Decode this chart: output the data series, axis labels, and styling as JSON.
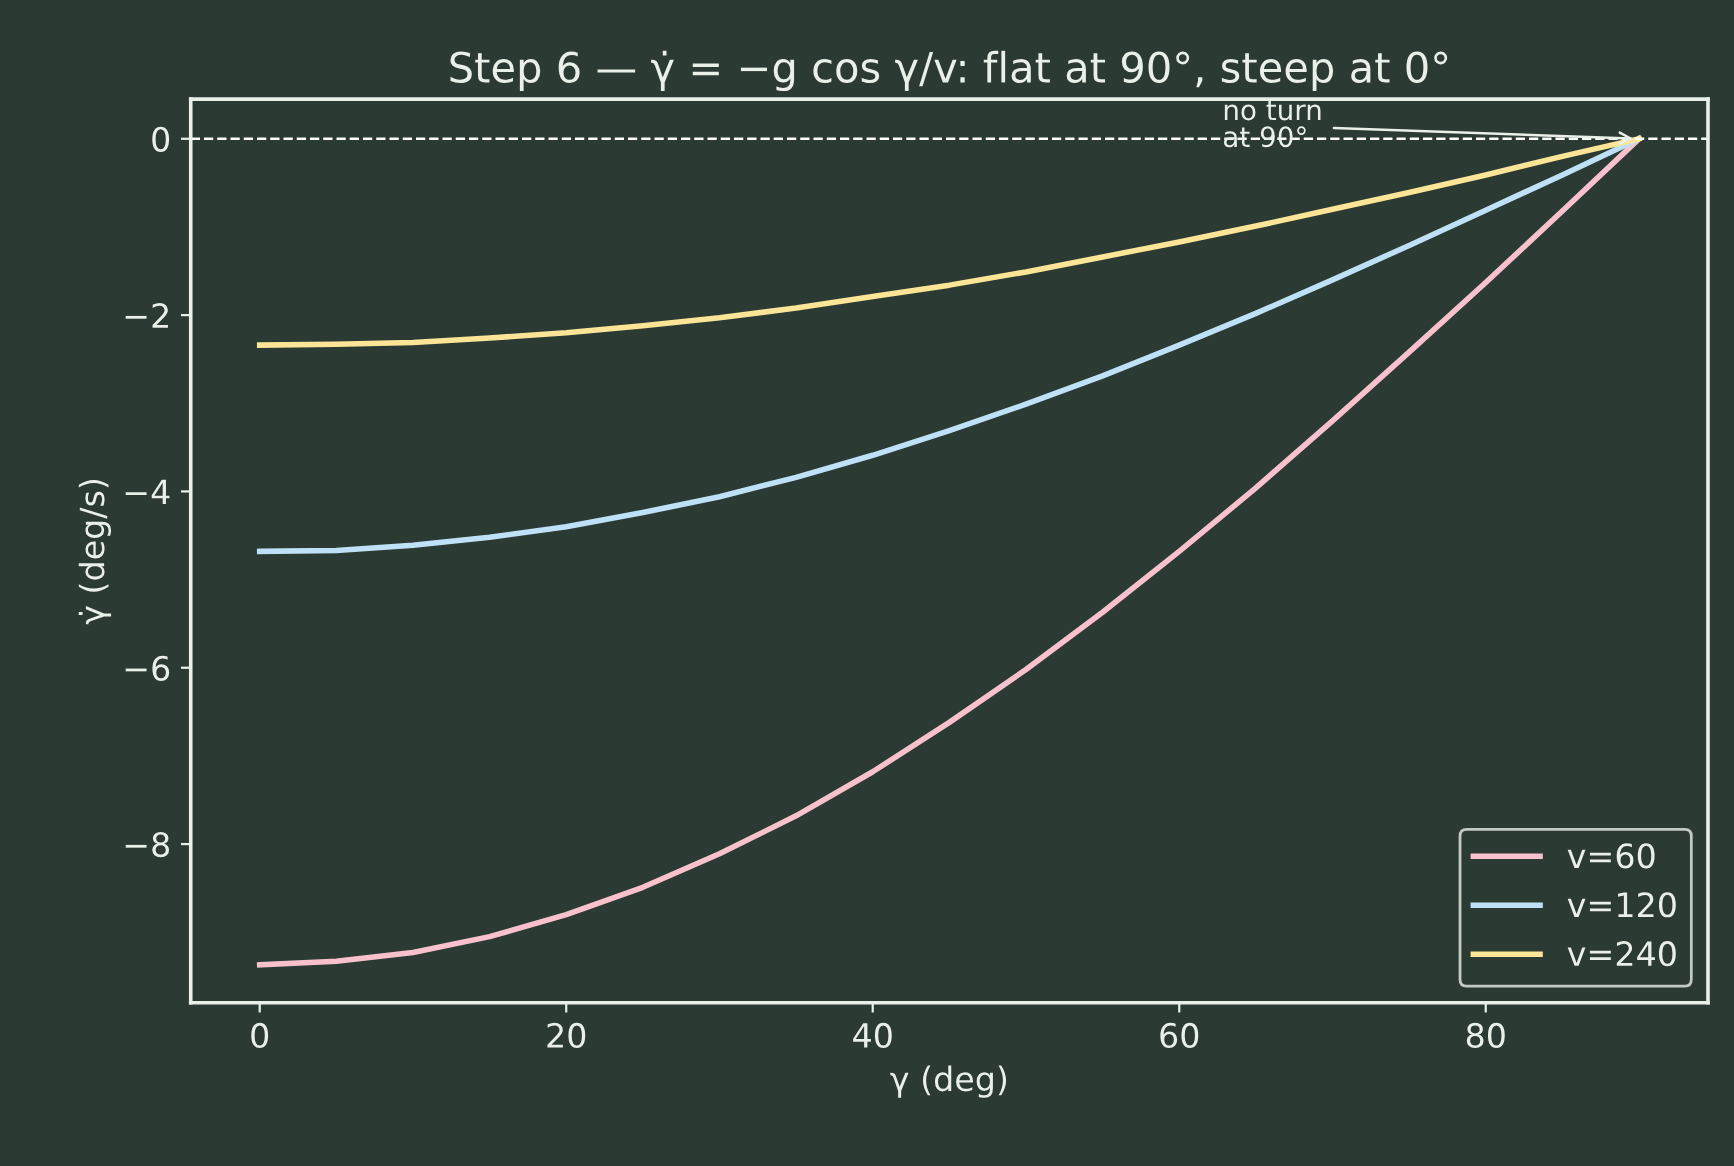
{
  "chart_data": {
    "type": "line",
    "title": "Step 6 — γ̇ = −g cos γ/v: flat at 90°, steep at 0°",
    "xlabel": "γ (deg)",
    "ylabel": "γ̇ (deg/s)",
    "x": [
      0,
      5,
      10,
      15,
      20,
      25,
      30,
      35,
      40,
      45,
      50,
      55,
      60,
      65,
      70,
      75,
      80,
      85,
      90
    ],
    "series": [
      {
        "name": "v=60",
        "color": "#f8c1cc",
        "values": [
          -9.37,
          -9.33,
          -9.23,
          -9.05,
          -8.8,
          -8.49,
          -8.11,
          -7.68,
          -7.18,
          -6.62,
          -6.02,
          -5.37,
          -4.68,
          -3.96,
          -3.2,
          -2.42,
          -1.63,
          -0.82,
          0
        ]
      },
      {
        "name": "v=120",
        "color": "#bfe1f8",
        "values": [
          -4.68,
          -4.67,
          -4.61,
          -4.52,
          -4.4,
          -4.24,
          -4.06,
          -3.84,
          -3.59,
          -3.31,
          -3.01,
          -2.69,
          -2.34,
          -1.98,
          -1.6,
          -1.21,
          -0.81,
          -0.41,
          0
        ]
      },
      {
        "name": "v=240",
        "color": "#fce596",
        "values": [
          -2.34,
          -2.33,
          -2.31,
          -2.26,
          -2.2,
          -2.12,
          -2.03,
          -1.92,
          -1.79,
          -1.66,
          -1.51,
          -1.34,
          -1.17,
          -0.99,
          -0.8,
          -0.61,
          -0.41,
          -0.2,
          0
        ]
      }
    ],
    "xlim": [
      -4.5,
      94.5
    ],
    "ylim": [
      -9.8,
      0.45
    ],
    "xticks": [
      0,
      20,
      40,
      60,
      80
    ],
    "yticks": [
      {
        "value": -8,
        "label": "−8"
      },
      {
        "value": -6,
        "label": "−6"
      },
      {
        "value": -4,
        "label": "−4"
      },
      {
        "value": -2,
        "label": "−2"
      },
      0
    ],
    "ref_lines": [
      {
        "axis": "y",
        "value": 0,
        "color": "#ffffff",
        "line_style": "dashed"
      }
    ],
    "annotations": [
      {
        "text": "no turn\nat 90°",
        "x": 90,
        "y": 0
      }
    ],
    "legend": "lower right",
    "grid": false,
    "marker": "none",
    "line_style": "solid"
  }
}
